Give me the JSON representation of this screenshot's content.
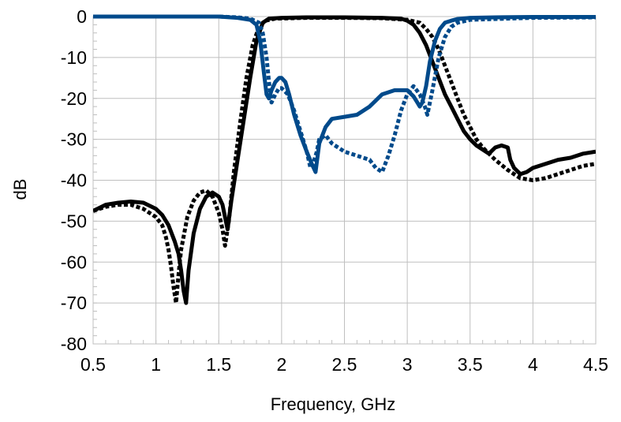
{
  "chart_data": {
    "type": "line",
    "xlabel": "Frequency, GHz",
    "ylabel": "dB",
    "xlim": [
      0.5,
      4.5
    ],
    "ylim": [
      -80,
      0
    ],
    "xticks": [
      "0.5",
      "1",
      "1.5",
      "2",
      "2.5",
      "3",
      "3.5",
      "4",
      "4.5"
    ],
    "yticks": [
      "0",
      "-10",
      "-20",
      "-30",
      "-40",
      "-50",
      "-60",
      "-70",
      "-80"
    ],
    "grid": true,
    "legend": "none",
    "colors": {
      "blue": "#004a8b",
      "black": "#000000",
      "grid": "#bfbfbf"
    },
    "series": [
      {
        "color": "#000000",
        "dash": "solid",
        "x": [
          0.5,
          0.6,
          0.7,
          0.8,
          0.9,
          1.0,
          1.05,
          1.1,
          1.15,
          1.18,
          1.2,
          1.22,
          1.24,
          1.26,
          1.3,
          1.35,
          1.4,
          1.45,
          1.5,
          1.53,
          1.55,
          1.57,
          1.6,
          1.65,
          1.7,
          1.75,
          1.8,
          1.85,
          1.9,
          2.0,
          2.2,
          2.5,
          2.8,
          2.95,
          3.0,
          3.05,
          3.1,
          3.15,
          3.2,
          3.25,
          3.3,
          3.35,
          3.4,
          3.45,
          3.5,
          3.55,
          3.6,
          3.65,
          3.7,
          3.75,
          3.8,
          3.82,
          3.85,
          3.9,
          3.95,
          4.0,
          4.1,
          4.2,
          4.3,
          4.4,
          4.5
        ],
        "y": [
          -47.5,
          -46,
          -45.5,
          -45.2,
          -45.5,
          -47,
          -48.5,
          -51,
          -55,
          -58,
          -62,
          -67,
          -70,
          -62,
          -53,
          -47,
          -44,
          -43,
          -44,
          -46,
          -49,
          -52,
          -45,
          -35,
          -25,
          -15,
          -6,
          -1.5,
          -0.5,
          -0.3,
          -0.2,
          -0.2,
          -0.3,
          -0.5,
          -1,
          -2,
          -4,
          -7,
          -11,
          -15,
          -19,
          -22,
          -25,
          -28,
          -30,
          -31.5,
          -32.5,
          -33.5,
          -32,
          -31.5,
          -32,
          -35,
          -37,
          -38.5,
          -38,
          -37,
          -36,
          -35,
          -34.5,
          -33.5,
          -33
        ]
      },
      {
        "color": "#000000",
        "dash": "dotted",
        "x": [
          0.5,
          0.6,
          0.7,
          0.8,
          0.9,
          1.0,
          1.05,
          1.08,
          1.1,
          1.12,
          1.14,
          1.16,
          1.18,
          1.2,
          1.25,
          1.3,
          1.35,
          1.4,
          1.45,
          1.5,
          1.53,
          1.55,
          1.58,
          1.62,
          1.67,
          1.72,
          1.77,
          1.82,
          1.87,
          1.95,
          2.2,
          2.5,
          2.8,
          3.0,
          3.1,
          3.15,
          3.2,
          3.25,
          3.3,
          3.35,
          3.4,
          3.45,
          3.5,
          3.55,
          3.6,
          3.7,
          3.8,
          3.9,
          4.0,
          4.1,
          4.2,
          4.3,
          4.4,
          4.5
        ],
        "y": [
          -47.5,
          -46.5,
          -46,
          -46,
          -47,
          -49,
          -51,
          -54,
          -57,
          -61,
          -66,
          -70,
          -63,
          -57,
          -49,
          -45,
          -43,
          -42.5,
          -44,
          -48,
          -52,
          -56,
          -50,
          -38,
          -26,
          -15,
          -7,
          -2.5,
          -1,
          -0.5,
          -0.3,
          -0.3,
          -0.4,
          -0.8,
          -1.5,
          -3,
          -5,
          -8,
          -12,
          -16,
          -20,
          -24,
          -27,
          -30,
          -32,
          -35,
          -37.5,
          -39.5,
          -40,
          -39.5,
          -38.5,
          -37.5,
          -36.5,
          -36
        ]
      },
      {
        "color": "#004a8b",
        "dash": "solid",
        "x": [
          0.5,
          1.0,
          1.5,
          1.65,
          1.75,
          1.8,
          1.83,
          1.86,
          1.88,
          1.9,
          1.92,
          1.95,
          1.98,
          2.0,
          2.03,
          2.06,
          2.1,
          2.15,
          2.2,
          2.24,
          2.27,
          2.3,
          2.35,
          2.4,
          2.5,
          2.6,
          2.7,
          2.8,
          2.9,
          3.0,
          3.05,
          3.08,
          3.1,
          3.12,
          3.15,
          3.18,
          3.22,
          3.26,
          3.3,
          3.35,
          3.4,
          3.5,
          3.7,
          4.0,
          4.5
        ],
        "y": [
          0,
          0,
          0,
          -0.3,
          -0.8,
          -2,
          -6,
          -14,
          -19,
          -20,
          -18,
          -16,
          -15,
          -15,
          -16,
          -19,
          -24,
          -29,
          -33,
          -36,
          -38,
          -31,
          -27,
          -25,
          -24.5,
          -24,
          -22,
          -19,
          -18,
          -18,
          -19.5,
          -21,
          -22,
          -21,
          -17,
          -11,
          -6,
          -3,
          -1.5,
          -1,
          -0.6,
          -0.3,
          -0.2,
          -0.1,
          -0.1
        ]
      },
      {
        "color": "#004a8b",
        "dash": "dotted",
        "x": [
          0.5,
          1.0,
          1.5,
          1.65,
          1.75,
          1.82,
          1.85,
          1.88,
          1.9,
          1.92,
          1.95,
          1.98,
          2.0,
          2.05,
          2.1,
          2.15,
          2.2,
          2.23,
          2.25,
          2.28,
          2.3,
          2.35,
          2.4,
          2.45,
          2.5,
          2.6,
          2.7,
          2.75,
          2.8,
          2.85,
          2.9,
          2.95,
          3.0,
          3.05,
          3.1,
          3.14,
          3.16,
          3.2,
          3.25,
          3.3,
          3.35,
          3.4,
          3.5,
          4.0,
          4.5
        ],
        "y": [
          0,
          0,
          0,
          -0.2,
          -0.5,
          -1.5,
          -4,
          -10,
          -16,
          -21,
          -19,
          -17.5,
          -17.5,
          -19,
          -23,
          -28,
          -33,
          -37,
          -36,
          -33,
          -30,
          -29,
          -31,
          -32,
          -33,
          -34,
          -35,
          -37,
          -38,
          -34,
          -29,
          -23,
          -19,
          -17,
          -19,
          -22,
          -24,
          -18,
          -10,
          -5,
          -2.5,
          -1.5,
          -0.8,
          -0.3,
          -0.2
        ]
      }
    ]
  }
}
